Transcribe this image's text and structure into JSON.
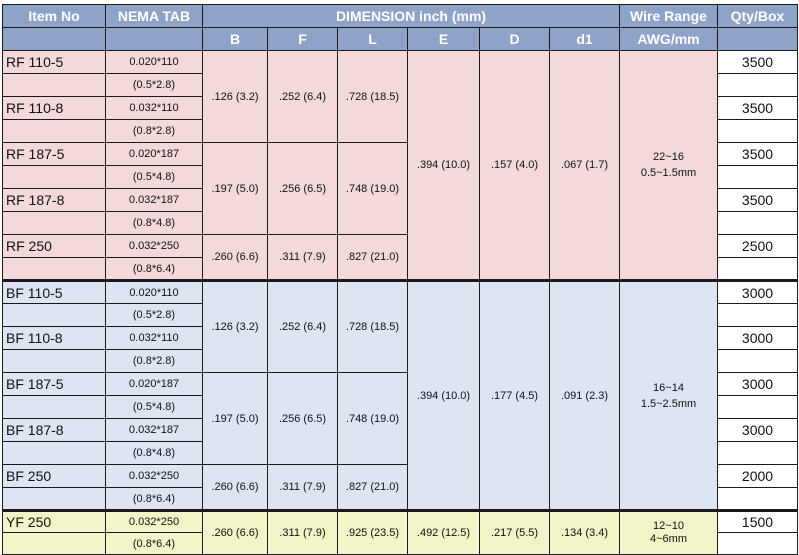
{
  "headers": {
    "item_no": "Item No",
    "nema_tab": "NEMA TAB",
    "dimension": "DIMENSION inch (mm)",
    "wire_range": "Wire Range",
    "qty_box": "Qty/Box",
    "b": "B",
    "f": "F",
    "l": "L",
    "e": "E",
    "d": "D",
    "d1": "d1",
    "awg_mm": "AWG/mm"
  },
  "colors": {
    "header": "#8fa2c7",
    "rf_group": "#f3d9d9",
    "bf_group": "#dce5f1",
    "yf_group": "#f2f4c8"
  },
  "rf": {
    "items": [
      {
        "item": "RF 110-5",
        "nema_in": "0.020*110",
        "nema_mm": "(0.5*2.8)",
        "qty": "3500"
      },
      {
        "item": "RF 110-8",
        "nema_in": "0.032*110",
        "nema_mm": "(0.8*2.8)",
        "qty": "3500"
      },
      {
        "item": "RF 187-5",
        "nema_in": "0.020*187",
        "nema_mm": "(0.5*4.8)",
        "qty": "3500"
      },
      {
        "item": "RF 187-8",
        "nema_in": "0.032*187",
        "nema_mm": "(0.8*4.8)",
        "qty": "3500"
      },
      {
        "item": "RF 250",
        "nema_in": "0.032*250",
        "nema_mm": "(0.8*6.4)",
        "qty": "2500"
      }
    ],
    "dims_110": {
      "b": ".126 (3.2)",
      "f": ".252 (6.4)",
      "l": ".728 (18.5)"
    },
    "dims_187": {
      "b": ".197 (5.0)",
      "f": ".256 (6.5)",
      "l": ".748 (19.0)"
    },
    "dims_250": {
      "b": ".260 (6.6)",
      "f": ".311 (7.9)",
      "l": ".827 (21.0)"
    },
    "e": ".394 (10.0)",
    "d": ".157 (4.0)",
    "d1": ".067 (1.7)",
    "wire_awg": "22~16",
    "wire_mm": "0.5~1.5mm"
  },
  "bf": {
    "items": [
      {
        "item": "BF 110-5",
        "nema_in": "0.020*110",
        "nema_mm": "(0.5*2.8)",
        "qty": "3000"
      },
      {
        "item": "BF 110-8",
        "nema_in": "0.032*110",
        "nema_mm": "(0.8*2.8)",
        "qty": "3000"
      },
      {
        "item": "BF 187-5",
        "nema_in": "0.020*187",
        "nema_mm": "(0.5*4.8)",
        "qty": "3000"
      },
      {
        "item": "BF 187-8",
        "nema_in": "0.032*187",
        "nema_mm": "(0.8*4.8)",
        "qty": "3000"
      },
      {
        "item": "BF 250",
        "nema_in": "0.032*250",
        "nema_mm": "(0.8*6.4)",
        "qty": "2000"
      }
    ],
    "dims_110": {
      "b": ".126 (3.2)",
      "f": ".252 (6.4)",
      "l": ".728 (18.5)"
    },
    "dims_187": {
      "b": ".197 (5.0)",
      "f": ".256 (6.5)",
      "l": ".748 (19.0)"
    },
    "dims_250": {
      "b": ".260 (6.6)",
      "f": ".311 (7.9)",
      "l": ".827 (21.0)"
    },
    "e": ".394 (10.0)",
    "d": ".177 (4.5)",
    "d1": ".091 (2.3)",
    "wire_awg": "16~14",
    "wire_mm": "1.5~2.5mm"
  },
  "yf": {
    "item": "YF 250",
    "nema_in": "0.032*250",
    "nema_mm": "(0.8*6.4)",
    "qty": "1500",
    "b": ".260 (6.6)",
    "f": ".311 (7.9)",
    "l": ".925 (23.5)",
    "e": ".492 (12.5)",
    "d": ".217 (5.5)",
    "d1": ".134 (3.4)",
    "wire_awg": "12~10",
    "wire_mm": "4~6mm"
  }
}
